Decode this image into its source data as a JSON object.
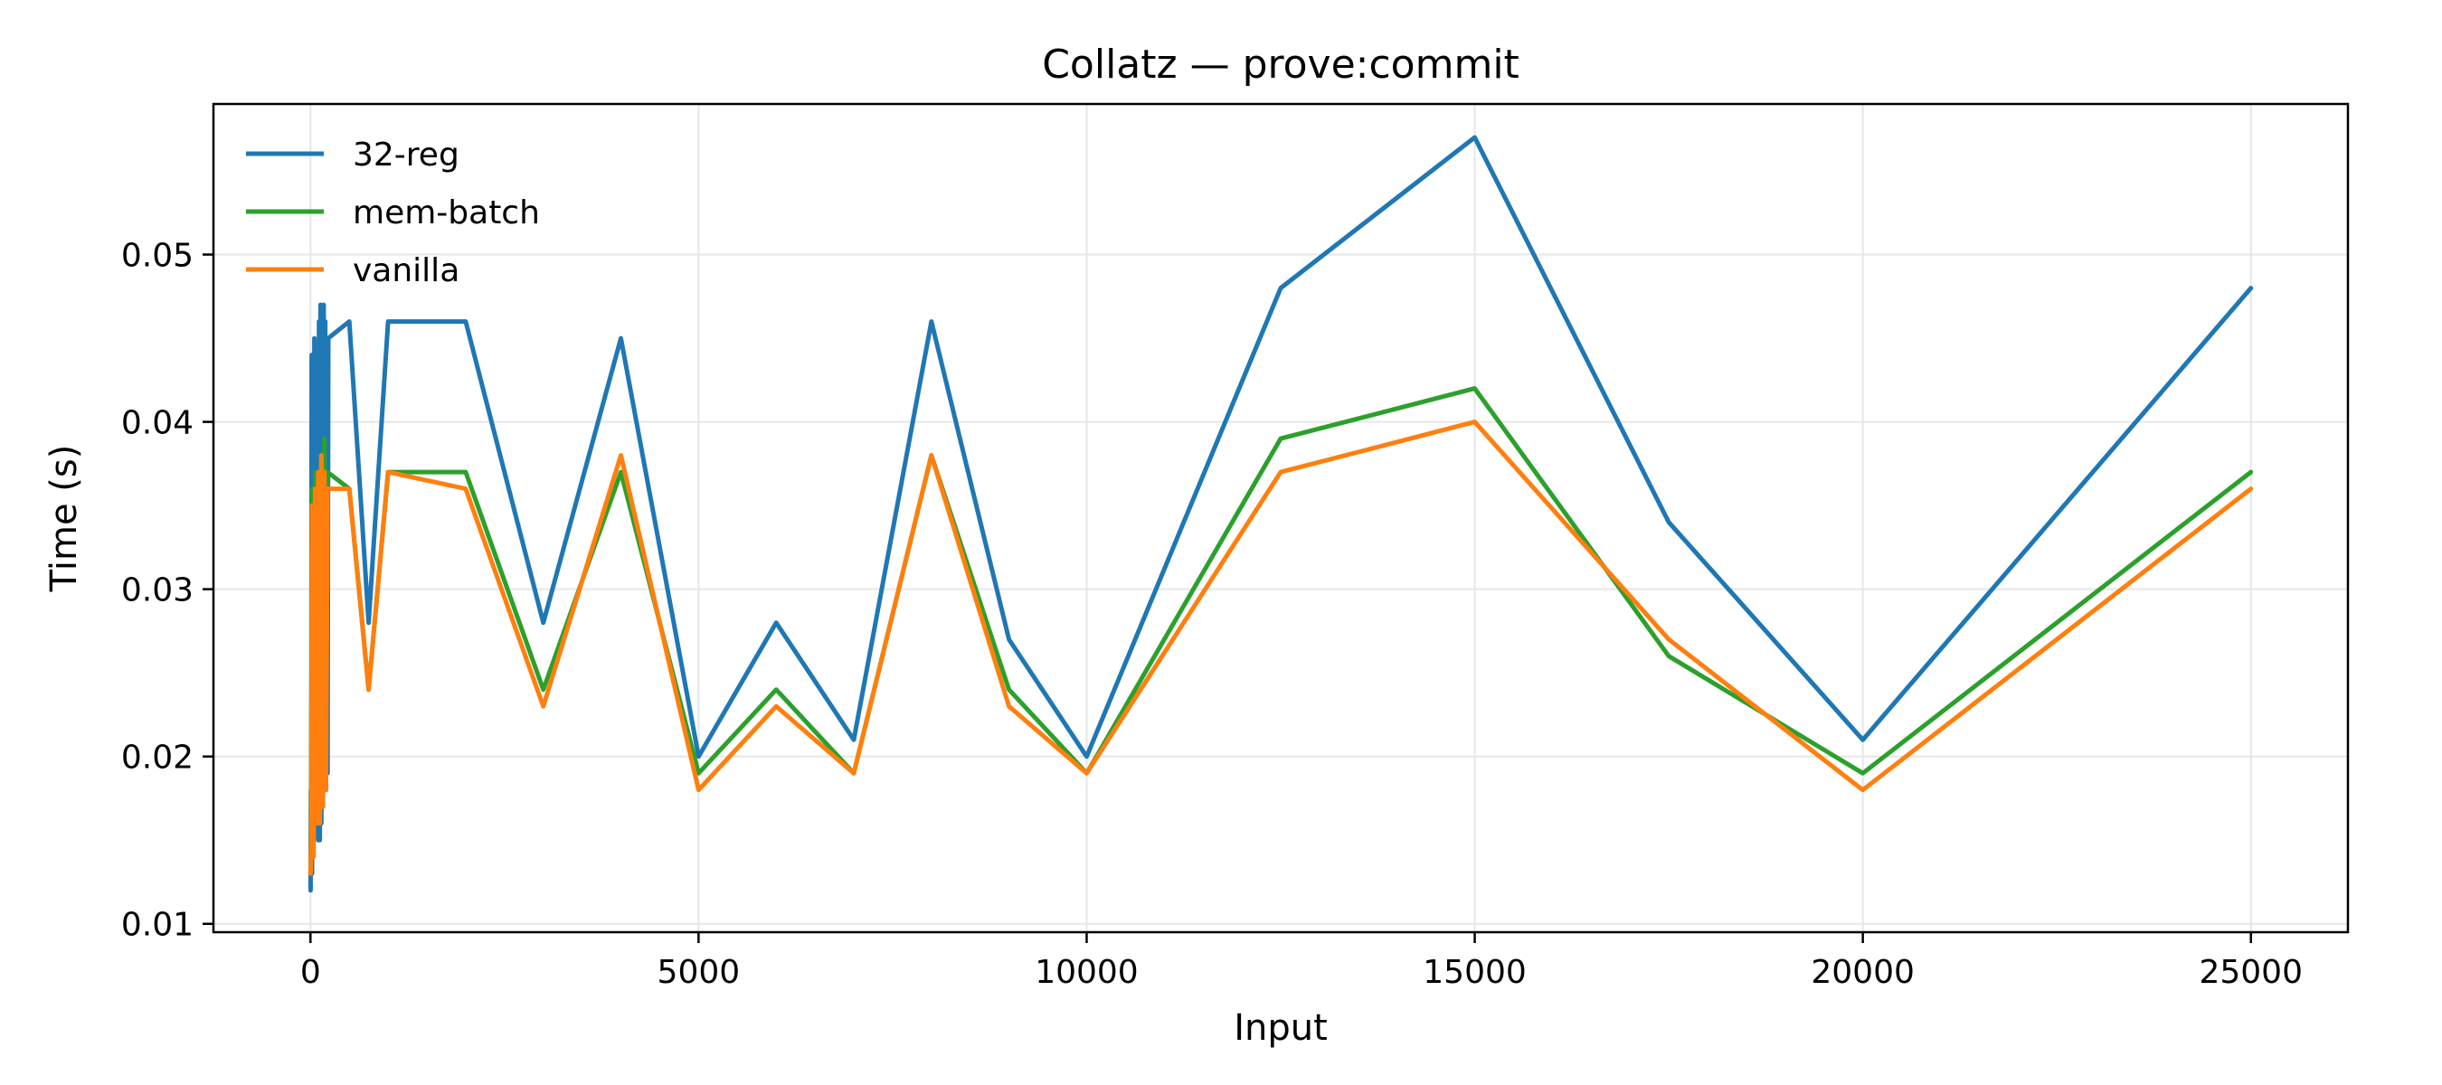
{
  "chart_data": {
    "type": "line",
    "title": "Collatz — prove:commit",
    "xlabel": "Input",
    "ylabel": "Time (s)",
    "xlim": [
      -1250,
      26250
    ],
    "ylim": [
      0.0095,
      0.059
    ],
    "xticks": [
      0,
      5000,
      10000,
      15000,
      20000,
      25000
    ],
    "yticks": [
      0.01,
      0.02,
      0.03,
      0.04,
      0.05
    ],
    "xtick_labels": [
      "0",
      "5000",
      "10000",
      "15000",
      "20000",
      "25000"
    ],
    "ytick_labels": [
      "0.01",
      "0.02",
      "0.03",
      "0.04",
      "0.05"
    ],
    "grid": true,
    "legend_position": "top-left",
    "series": [
      {
        "name": "32-reg",
        "color": "#1f77b4",
        "points": [
          [
            1,
            0.012
          ],
          [
            5,
            0.018
          ],
          [
            10,
            0.014
          ],
          [
            15,
            0.044
          ],
          [
            20,
            0.013
          ],
          [
            30,
            0.042
          ],
          [
            40,
            0.015
          ],
          [
            50,
            0.045
          ],
          [
            60,
            0.016
          ],
          [
            70,
            0.043
          ],
          [
            80,
            0.017
          ],
          [
            90,
            0.044
          ],
          [
            100,
            0.015
          ],
          [
            110,
            0.046
          ],
          [
            120,
            0.015
          ],
          [
            130,
            0.047
          ],
          [
            140,
            0.016
          ],
          [
            150,
            0.046
          ],
          [
            160,
            0.017
          ],
          [
            170,
            0.047
          ],
          [
            180,
            0.018
          ],
          [
            190,
            0.046
          ],
          [
            200,
            0.018
          ],
          [
            210,
            0.045
          ],
          [
            220,
            0.019
          ],
          [
            230,
            0.045
          ],
          [
            500,
            0.046
          ],
          [
            750,
            0.028
          ],
          [
            1000,
            0.046
          ],
          [
            2000,
            0.046
          ],
          [
            3000,
            0.028
          ],
          [
            4000,
            0.045
          ],
          [
            5000,
            0.02
          ],
          [
            6000,
            0.028
          ],
          [
            7000,
            0.021
          ],
          [
            8000,
            0.046
          ],
          [
            9000,
            0.027
          ],
          [
            10000,
            0.02
          ],
          [
            12500,
            0.048
          ],
          [
            15000,
            0.057
          ],
          [
            17500,
            0.034
          ],
          [
            20000,
            0.021
          ],
          [
            25000,
            0.048
          ]
        ]
      },
      {
        "name": "mem-batch",
        "color": "#2ca02c",
        "points": [
          [
            1,
            0.013
          ],
          [
            10,
            0.016
          ],
          [
            20,
            0.036
          ],
          [
            40,
            0.015
          ],
          [
            60,
            0.037
          ],
          [
            80,
            0.016
          ],
          [
            100,
            0.037
          ],
          [
            120,
            0.017
          ],
          [
            140,
            0.038
          ],
          [
            160,
            0.018
          ],
          [
            180,
            0.039
          ],
          [
            200,
            0.019
          ],
          [
            220,
            0.037
          ],
          [
            500,
            0.036
          ],
          [
            750,
            0.024
          ],
          [
            1000,
            0.037
          ],
          [
            2000,
            0.037
          ],
          [
            3000,
            0.024
          ],
          [
            4000,
            0.037
          ],
          [
            5000,
            0.019
          ],
          [
            6000,
            0.024
          ],
          [
            7000,
            0.019
          ],
          [
            8000,
            0.038
          ],
          [
            9000,
            0.024
          ],
          [
            10000,
            0.019
          ],
          [
            12500,
            0.039
          ],
          [
            15000,
            0.042
          ],
          [
            17500,
            0.026
          ],
          [
            20000,
            0.019
          ],
          [
            25000,
            0.037
          ]
        ]
      },
      {
        "name": "vanilla",
        "color": "#ff7f0e",
        "points": [
          [
            1,
            0.013
          ],
          [
            10,
            0.015
          ],
          [
            20,
            0.035
          ],
          [
            40,
            0.014
          ],
          [
            60,
            0.036
          ],
          [
            80,
            0.016
          ],
          [
            100,
            0.037
          ],
          [
            120,
            0.016
          ],
          [
            140,
            0.038
          ],
          [
            160,
            0.017
          ],
          [
            180,
            0.037
          ],
          [
            200,
            0.018
          ],
          [
            220,
            0.036
          ],
          [
            500,
            0.036
          ],
          [
            750,
            0.024
          ],
          [
            1000,
            0.037
          ],
          [
            2000,
            0.036
          ],
          [
            3000,
            0.023
          ],
          [
            4000,
            0.038
          ],
          [
            5000,
            0.018
          ],
          [
            6000,
            0.023
          ],
          [
            7000,
            0.019
          ],
          [
            8000,
            0.038
          ],
          [
            9000,
            0.023
          ],
          [
            10000,
            0.019
          ],
          [
            12500,
            0.037
          ],
          [
            15000,
            0.04
          ],
          [
            17500,
            0.027
          ],
          [
            20000,
            0.018
          ],
          [
            25000,
            0.036
          ]
        ]
      }
    ]
  }
}
